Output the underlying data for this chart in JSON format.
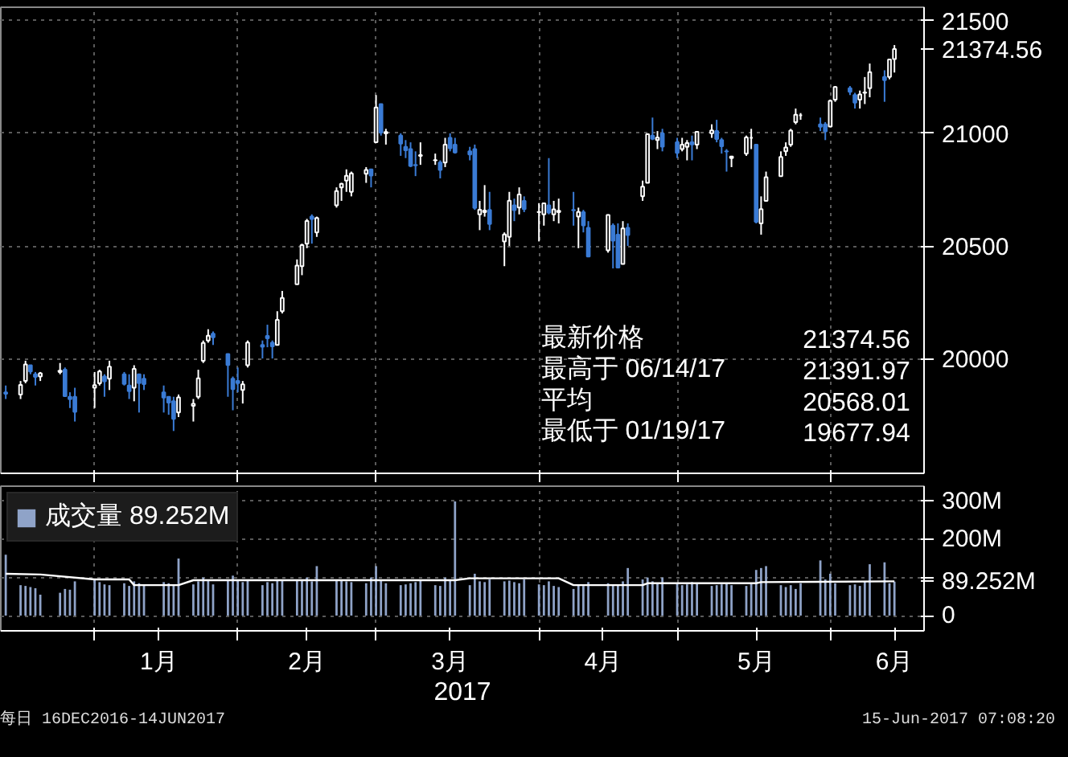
{
  "chart_data": [
    {
      "type": "candlestick",
      "x": [
        "2016-12-16",
        "2016-12-19",
        "2016-12-20",
        "2016-12-21",
        "2016-12-22",
        "2016-12-23",
        "2016-12-27",
        "2016-12-28",
        "2016-12-29",
        "2016-12-30",
        "2017-01-03",
        "2017-01-04",
        "2017-01-05",
        "2017-01-06",
        "2017-01-09",
        "2017-01-10",
        "2017-01-11",
        "2017-01-12",
        "2017-01-13",
        "2017-01-17",
        "2017-01-18",
        "2017-01-19",
        "2017-01-20",
        "2017-01-23",
        "2017-01-24",
        "2017-01-25",
        "2017-01-26",
        "2017-01-27",
        "2017-01-30",
        "2017-01-31",
        "2017-02-01",
        "2017-02-02",
        "2017-02-03",
        "2017-02-06",
        "2017-02-07",
        "2017-02-08",
        "2017-02-09",
        "2017-02-10",
        "2017-02-13",
        "2017-02-14",
        "2017-02-15",
        "2017-02-16",
        "2017-02-17",
        "2017-02-21",
        "2017-02-22",
        "2017-02-23",
        "2017-02-24",
        "2017-02-27",
        "2017-02-28",
        "2017-03-01",
        "2017-03-02",
        "2017-03-03",
        "2017-03-06",
        "2017-03-07",
        "2017-03-08",
        "2017-03-09",
        "2017-03-10",
        "2017-03-13",
        "2017-03-14",
        "2017-03-15",
        "2017-03-16",
        "2017-03-17",
        "2017-03-20",
        "2017-03-21",
        "2017-03-22",
        "2017-03-23",
        "2017-03-24",
        "2017-03-27",
        "2017-03-28",
        "2017-03-29",
        "2017-03-30",
        "2017-03-31",
        "2017-04-03",
        "2017-04-04",
        "2017-04-05",
        "2017-04-06",
        "2017-04-07",
        "2017-04-10",
        "2017-04-11",
        "2017-04-12",
        "2017-04-13",
        "2017-04-17",
        "2017-04-18",
        "2017-04-19",
        "2017-04-20",
        "2017-04-21",
        "2017-04-24",
        "2017-04-25",
        "2017-04-26",
        "2017-04-27",
        "2017-04-28",
        "2017-05-01",
        "2017-05-02",
        "2017-05-03",
        "2017-05-04",
        "2017-05-05",
        "2017-05-08",
        "2017-05-09",
        "2017-05-10",
        "2017-05-11",
        "2017-05-12",
        "2017-05-15",
        "2017-05-16",
        "2017-05-17",
        "2017-05-18",
        "2017-05-19",
        "2017-05-22",
        "2017-05-23",
        "2017-05-24",
        "2017-05-25",
        "2017-05-26",
        "2017-05-30",
        "2017-05-31",
        "2017-06-01",
        "2017-06-02",
        "2017-06-05",
        "2017-06-06",
        "2017-06-07",
        "2017-06-08",
        "2017-06-09",
        "2017-06-12",
        "2017-06-13",
        "2017-06-14"
      ],
      "ohlc": [
        [
          19850,
          19880,
          19820,
          19843
        ],
        [
          19840,
          19900,
          19820,
          19883
        ],
        [
          19900,
          19990,
          19890,
          19974
        ],
        [
          19970,
          19970,
          19930,
          19942
        ],
        [
          19930,
          19940,
          19880,
          19918
        ],
        [
          19920,
          19940,
          19900,
          19934
        ],
        [
          19940,
          19980,
          19930,
          19946
        ],
        [
          19950,
          19960,
          19830,
          19833
        ],
        [
          19830,
          19850,
          19780,
          19819
        ],
        [
          19830,
          19870,
          19720,
          19763
        ],
        [
          19870,
          19940,
          19780,
          19882
        ],
        [
          19890,
          19950,
          19880,
          19942
        ],
        [
          19920,
          19930,
          19830,
          19899
        ],
        [
          19910,
          19990,
          19860,
          19964
        ],
        [
          19930,
          19940,
          19880,
          19887
        ],
        [
          19880,
          19930,
          19820,
          19855
        ],
        [
          19870,
          19970,
          19810,
          19954
        ],
        [
          19930,
          19930,
          19760,
          19891
        ],
        [
          19910,
          19930,
          19860,
          19886
        ],
        [
          19850,
          19880,
          19760,
          19826
        ],
        [
          19830,
          19830,
          19750,
          19804
        ],
        [
          19810,
          19830,
          19678,
          19732
        ],
        [
          19760,
          19840,
          19740,
          19827
        ],
        [
          19790,
          19820,
          19720,
          19799
        ],
        [
          19830,
          19950,
          19820,
          19912
        ],
        [
          19990,
          20080,
          19980,
          20069
        ],
        [
          20080,
          20130,
          20070,
          20101
        ],
        [
          20110,
          20120,
          20060,
          20094
        ],
        [
          20020,
          20020,
          19830,
          19971
        ],
        [
          19910,
          19920,
          19770,
          19864
        ],
        [
          19900,
          19960,
          19850,
          19891
        ],
        [
          19860,
          19900,
          19800,
          19885
        ],
        [
          19970,
          20080,
          19960,
          20071
        ],
        [
          20060,
          20080,
          20000,
          20052
        ],
        [
          20100,
          20150,
          20050,
          20090
        ],
        [
          20070,
          20080,
          20000,
          20054
        ],
        [
          20060,
          20210,
          20060,
          20172
        ],
        [
          20210,
          20300,
          20200,
          20269
        ],
        [
          20330,
          20440,
          20330,
          20413
        ],
        [
          20410,
          20510,
          20370,
          20504
        ],
        [
          20510,
          20620,
          20490,
          20611
        ],
        [
          20630,
          20640,
          20510,
          20620
        ],
        [
          20560,
          20630,
          20540,
          20624
        ],
        [
          20680,
          20760,
          20670,
          20744
        ],
        [
          20760,
          20780,
          20700,
          20776
        ],
        [
          20790,
          20840,
          20740,
          20811
        ],
        [
          20740,
          20830,
          20720,
          20822
        ],
        [
          20820,
          20850,
          20780,
          20837
        ],
        [
          20840,
          20840,
          20760,
          20812
        ],
        [
          20960,
          21170,
          20960,
          21115
        ],
        [
          21130,
          21130,
          20990,
          21003
        ],
        [
          21000,
          21020,
          20950,
          21006
        ],
        [
          20990,
          21000,
          20900,
          20954
        ],
        [
          20940,
          20970,
          20890,
          20925
        ],
        [
          20930,
          20960,
          20850,
          20855
        ],
        [
          20860,
          20920,
          20810,
          20858
        ],
        [
          20900,
          20960,
          20860,
          20903
        ],
        [
          20880,
          20910,
          20860,
          20881
        ],
        [
          20870,
          20880,
          20800,
          20837
        ],
        [
          20870,
          20980,
          20850,
          20950
        ],
        [
          20980,
          21000,
          20920,
          20934
        ],
        [
          20950,
          20980,
          20910,
          20915
        ],
        [
          20920,
          20940,
          20880,
          20906
        ],
        [
          20930,
          20950,
          20660,
          20669
        ],
        [
          20640,
          20700,
          20570,
          20661
        ],
        [
          20650,
          20770,
          20630,
          20657
        ],
        [
          20660,
          20740,
          20570,
          20597
        ],
        [
          20520,
          20560,
          20410,
          20551
        ],
        [
          20540,
          20740,
          20500,
          20701
        ],
        [
          20680,
          20710,
          20610,
          20659
        ],
        [
          20670,
          20760,
          20640,
          20728
        ],
        [
          20700,
          20720,
          20650,
          20663
        ],
        [
          20650,
          20690,
          20520,
          20651
        ],
        [
          20640,
          20690,
          20590,
          20689
        ],
        [
          20680,
          20890,
          20640,
          20648
        ],
        [
          20640,
          20700,
          20610,
          20662
        ],
        [
          20650,
          20710,
          20600,
          20656
        ],
        [
          20660,
          20740,
          20590,
          20658
        ],
        [
          20630,
          20670,
          20490,
          20651
        ],
        [
          20650,
          20660,
          20560,
          20591
        ],
        [
          20580,
          20610,
          20450,
          20453
        ],
        [
          20480,
          20640,
          20470,
          20637
        ],
        [
          20590,
          20600,
          20400,
          20523
        ],
        [
          20550,
          20600,
          20400,
          20404
        ],
        [
          20420,
          20610,
          20420,
          20578
        ],
        [
          20580,
          20600,
          20500,
          20548
        ],
        [
          20720,
          20790,
          20700,
          20763
        ],
        [
          20780,
          21000,
          20780,
          20996
        ],
        [
          20990,
          21070,
          20970,
          20976
        ],
        [
          20970,
          21010,
          20930,
          20981
        ],
        [
          21000,
          21020,
          20920,
          20941
        ],
        [
          20960,
          20980,
          20890,
          20913
        ],
        [
          20930,
          20980,
          20920,
          20950
        ],
        [
          20940,
          20970,
          20880,
          20957
        ],
        [
          20960,
          20990,
          20880,
          20951
        ],
        [
          20950,
          21010,
          20930,
          21007
        ],
        [
          21000,
          21040,
          20980,
          21013
        ],
        [
          21010,
          21060,
          20960,
          20975
        ],
        [
          20970,
          20980,
          20910,
          20943
        ],
        [
          20920,
          20930,
          20830,
          20919
        ],
        [
          20890,
          20900,
          20850,
          20897
        ],
        [
          20910,
          20990,
          20900,
          20982
        ],
        [
          20980,
          21020,
          20930,
          20980
        ],
        [
          20950,
          20950,
          20600,
          20607
        ],
        [
          20600,
          20720,
          20550,
          20663
        ],
        [
          20700,
          20830,
          20700,
          20805
        ],
        [
          20810,
          20920,
          20810,
          20895
        ],
        [
          20920,
          20960,
          20900,
          20937
        ],
        [
          20950,
          21020,
          20940,
          21012
        ],
        [
          21050,
          21110,
          21040,
          21083
        ],
        [
          21080,
          21090,
          21060,
          21080
        ],
        [
          21040,
          21070,
          21010,
          21029
        ],
        [
          21040,
          21050,
          20970,
          21009
        ],
        [
          21030,
          21150,
          21030,
          21144
        ],
        [
          21150,
          21210,
          21140,
          21206
        ],
        [
          21200,
          21210,
          21170,
          21184
        ],
        [
          21170,
          21180,
          21110,
          21136
        ],
        [
          21150,
          21190,
          21110,
          21173
        ],
        [
          21180,
          21250,
          21130,
          21182
        ],
        [
          21200,
          21310,
          21160,
          21272
        ],
        [
          21250,
          21280,
          21140,
          21236
        ],
        [
          21250,
          21330,
          21240,
          21328
        ],
        [
          21330,
          21391.97,
          21270,
          21374.56
        ]
      ],
      "ylim": [
        19490,
        21560
      ],
      "yticks": [
        20000,
        20500,
        21000,
        {
          "value": 21374.56,
          "label": "21374.56"
        },
        21500
      ],
      "xticks": [
        {
          "value": "2017-01-03",
          "label": null
        },
        {
          "value": "2017-02-01",
          "label": null
        },
        {
          "value": "2017-03-01",
          "label": null
        },
        {
          "value": "2017-04-03",
          "label": null
        },
        {
          "value": "2017-05-01",
          "label": null
        },
        {
          "value": "2017-06-01",
          "label": null
        }
      ],
      "xlim": [
        "2016-12-15",
        "2017-06-20"
      ],
      "tick_labels": "y",
      "grid": true,
      "annotations": [
        "最新价格",
        "21374.56",
        "最高于 06/14/17",
        "21391.97",
        "平均",
        "20568.01",
        "最低于 01/19/17",
        "19677.94"
      ]
    },
    {
      "type": "bar",
      "x": [
        "2016-12-16",
        "2016-12-19",
        "2016-12-20",
        "2016-12-21",
        "2016-12-22",
        "2016-12-23",
        "2016-12-27",
        "2016-12-28",
        "2016-12-29",
        "2016-12-30",
        "2017-01-03",
        "2017-01-04",
        "2017-01-05",
        "2017-01-06",
        "2017-01-09",
        "2017-01-10",
        "2017-01-11",
        "2017-01-12",
        "2017-01-13",
        "2017-01-17",
        "2017-01-18",
        "2017-01-19",
        "2017-01-20",
        "2017-01-23",
        "2017-01-24",
        "2017-01-25",
        "2017-01-26",
        "2017-01-27",
        "2017-01-30",
        "2017-01-31",
        "2017-02-01",
        "2017-02-02",
        "2017-02-03",
        "2017-02-06",
        "2017-02-07",
        "2017-02-08",
        "2017-02-09",
        "2017-02-10",
        "2017-02-13",
        "2017-02-14",
        "2017-02-15",
        "2017-02-16",
        "2017-02-17",
        "2017-02-21",
        "2017-02-22",
        "2017-02-23",
        "2017-02-24",
        "2017-02-27",
        "2017-02-28",
        "2017-03-01",
        "2017-03-02",
        "2017-03-03",
        "2017-03-06",
        "2017-03-07",
        "2017-03-08",
        "2017-03-09",
        "2017-03-10",
        "2017-03-13",
        "2017-03-14",
        "2017-03-15",
        "2017-03-16",
        "2017-03-17",
        "2017-03-20",
        "2017-03-21",
        "2017-03-22",
        "2017-03-23",
        "2017-03-24",
        "2017-03-27",
        "2017-03-28",
        "2017-03-29",
        "2017-03-30",
        "2017-03-31",
        "2017-04-03",
        "2017-04-04",
        "2017-04-05",
        "2017-04-06",
        "2017-04-07",
        "2017-04-10",
        "2017-04-11",
        "2017-04-12",
        "2017-04-13",
        "2017-04-17",
        "2017-04-18",
        "2017-04-19",
        "2017-04-20",
        "2017-04-21",
        "2017-04-24",
        "2017-04-25",
        "2017-04-26",
        "2017-04-27",
        "2017-04-28",
        "2017-05-01",
        "2017-05-02",
        "2017-05-03",
        "2017-05-04",
        "2017-05-05",
        "2017-05-08",
        "2017-05-09",
        "2017-05-10",
        "2017-05-11",
        "2017-05-12",
        "2017-05-15",
        "2017-05-16",
        "2017-05-17",
        "2017-05-18",
        "2017-05-19",
        "2017-05-22",
        "2017-05-23",
        "2017-05-24",
        "2017-05-25",
        "2017-05-26",
        "2017-05-30",
        "2017-05-31",
        "2017-06-01",
        "2017-06-02",
        "2017-06-05",
        "2017-06-06",
        "2017-06-07",
        "2017-06-08",
        "2017-06-09",
        "2017-06-12",
        "2017-06-13",
        "2017-06-14"
      ],
      "series": [
        {
          "name": "成交量 89.252M",
          "color": "#8fa3c8",
          "values": [
            160,
            80,
            78,
            75,
            72,
            55,
            60,
            70,
            68,
            90,
            95,
            88,
            82,
            80,
            85,
            78,
            90,
            85,
            82,
            88,
            85,
            80,
            150,
            82,
            90,
            100,
            95,
            82,
            92,
            105,
            92,
            88,
            92,
            80,
            88,
            85,
            92,
            95,
            92,
            95,
            100,
            90,
            130,
            95,
            92,
            90,
            88,
            85,
            100,
            130,
            95,
            85,
            80,
            82,
            85,
            88,
            95,
            80,
            78,
            100,
            95,
            300,
            80,
            110,
            90,
            88,
            95,
            90,
            92,
            88,
            85,
            95,
            82,
            80,
            90,
            78,
            75,
            70,
            82,
            78,
            88,
            85,
            80,
            82,
            90,
            125,
            95,
            100,
            90,
            85,
            100,
            85,
            80,
            82,
            88,
            85,
            78,
            80,
            82,
            85,
            80,
            78,
            85,
            120,
            125,
            130,
            80,
            75,
            80,
            70,
            85,
            145,
            95,
            110,
            85,
            80,
            82,
            78,
            90,
            135,
            140,
            85,
            89.252
          ]
        },
        {
          "type": "line",
          "color": "#ffffff",
          "x": [
            "2016-12-16",
            "2016-12-23",
            "2017-01-03",
            "2017-01-10",
            "2017-01-11",
            "2017-01-20",
            "2017-01-23",
            "2017-03-17",
            "2017-03-20",
            "2017-04-07",
            "2017-04-10",
            "2017-04-24",
            "2017-04-25",
            "2017-05-17",
            "2017-05-18",
            "2017-06-14"
          ],
          "values": [
            110,
            108,
            95,
            95,
            80,
            80,
            93,
            93,
            98,
            98,
            80,
            80,
            85,
            85,
            88,
            90
          ]
        }
      ],
      "ylim": [
        -40,
        340
      ],
      "yticks": [
        0,
        {
          "value": 89.252,
          "label": "89.252M"
        },
        {
          "value": 100,
          "label": null
        },
        {
          "value": 200,
          "label": "200M"
        },
        {
          "value": 300,
          "label": "300M"
        }
      ],
      "xticks": [
        {
          "value": "2017-01-03",
          "label": null
        },
        {
          "value": "2017-01-16",
          "label": "1月"
        },
        {
          "value": "2017-02-01",
          "label": null
        },
        {
          "value": "2017-02-15",
          "label": "2月"
        },
        {
          "value": "2017-03-01",
          "label": null
        },
        {
          "value": "2017-03-16",
          "label": "3月"
        },
        {
          "value": "2017-04-03",
          "label": null
        },
        {
          "value": "2017-04-16",
          "label": "4月"
        },
        {
          "value": "2017-05-01",
          "label": null
        },
        {
          "value": "2017-05-17",
          "label": "5月"
        },
        {
          "value": "2017-06-01",
          "label": null
        },
        {
          "value": "2017-06-14",
          "label": "6月"
        }
      ],
      "xlim": [
        "2016-12-15",
        "2017-06-20"
      ],
      "xlabel": "2017",
      "grid": true,
      "legend": "top left",
      "annotations": [
        "每日 16DEC2016-14JUN2017",
        "15-Jun-2017 07:08:20"
      ]
    }
  ]
}
